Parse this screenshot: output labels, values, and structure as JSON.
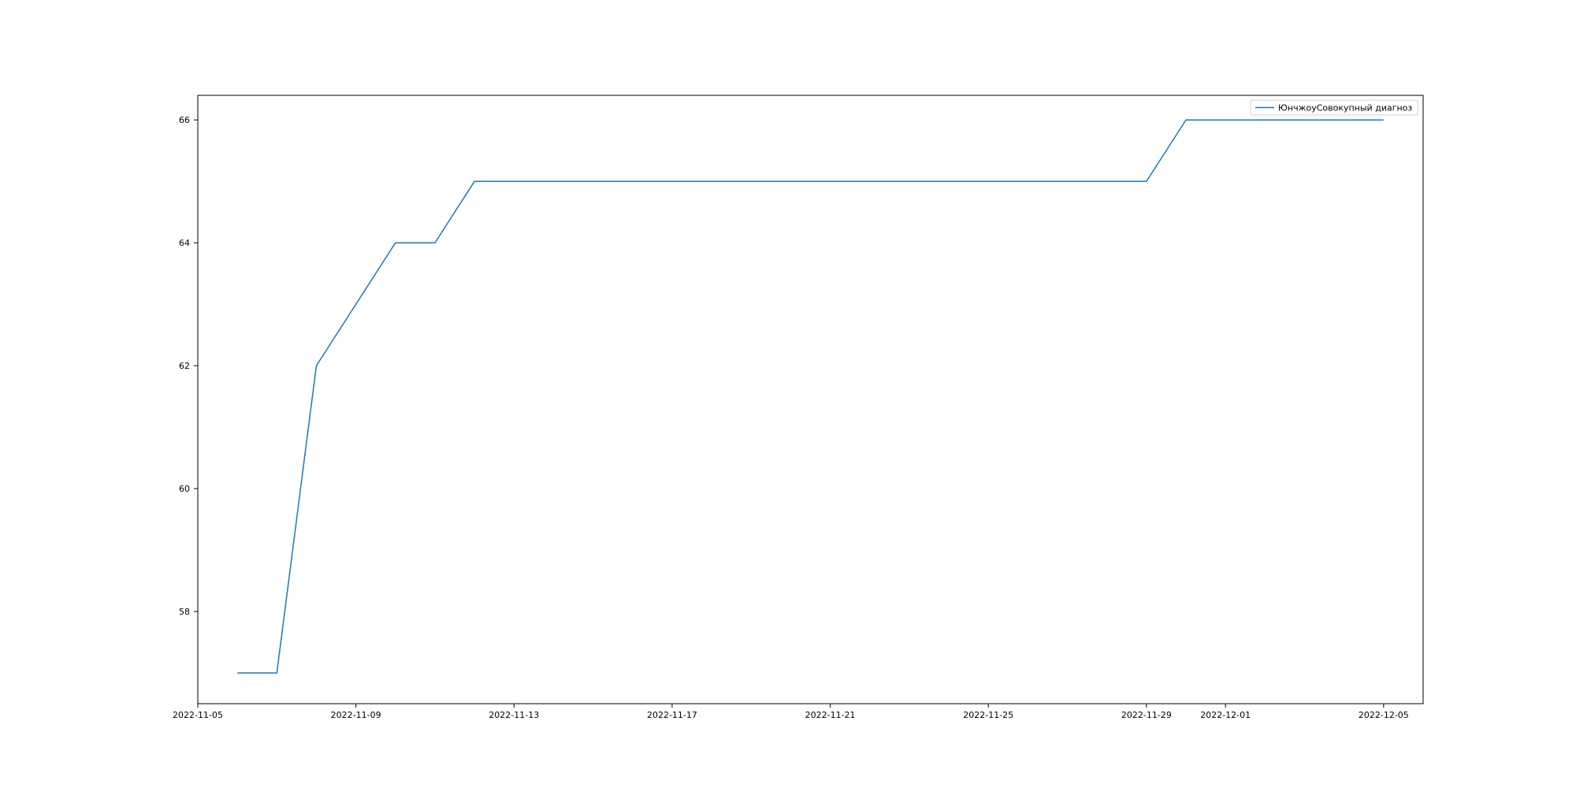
{
  "chart_data": {
    "type": "line",
    "title": "",
    "xlabel": "",
    "ylabel": "",
    "x_type": "date",
    "xlim": [
      "2022-11-05",
      "2022-12-06"
    ],
    "ylim": [
      56.5,
      66.4
    ],
    "x_ticks": [
      "2022-11-05",
      "2022-11-09",
      "2022-11-13",
      "2022-11-17",
      "2022-11-21",
      "2022-11-25",
      "2022-11-29",
      "2022-12-01",
      "2022-12-05"
    ],
    "y_ticks": [
      58,
      60,
      62,
      64,
      66
    ],
    "grid": false,
    "legend": {
      "position": "top-right"
    },
    "colors": {
      "series": "#1f77b4",
      "axes": "#000000"
    },
    "series": [
      {
        "name": "ЮнчжоуСовокупный диагноз",
        "x": [
          "2022-11-06",
          "2022-11-07",
          "2022-11-08",
          "2022-11-09",
          "2022-11-10",
          "2022-11-11",
          "2022-11-12",
          "2022-11-13",
          "2022-11-14",
          "2022-11-15",
          "2022-11-16",
          "2022-11-17",
          "2022-11-18",
          "2022-11-19",
          "2022-11-20",
          "2022-11-21",
          "2022-11-22",
          "2022-11-23",
          "2022-11-24",
          "2022-11-25",
          "2022-11-26",
          "2022-11-27",
          "2022-11-28",
          "2022-11-29",
          "2022-11-30",
          "2022-12-01",
          "2022-12-02",
          "2022-12-03",
          "2022-12-04",
          "2022-12-05"
        ],
        "y": [
          57,
          57,
          62,
          63,
          64,
          64,
          65,
          65,
          65,
          65,
          65,
          65,
          65,
          65,
          65,
          65,
          65,
          65,
          65,
          65,
          65,
          65,
          65,
          65,
          66,
          66,
          66,
          66,
          66,
          66
        ]
      }
    ]
  }
}
